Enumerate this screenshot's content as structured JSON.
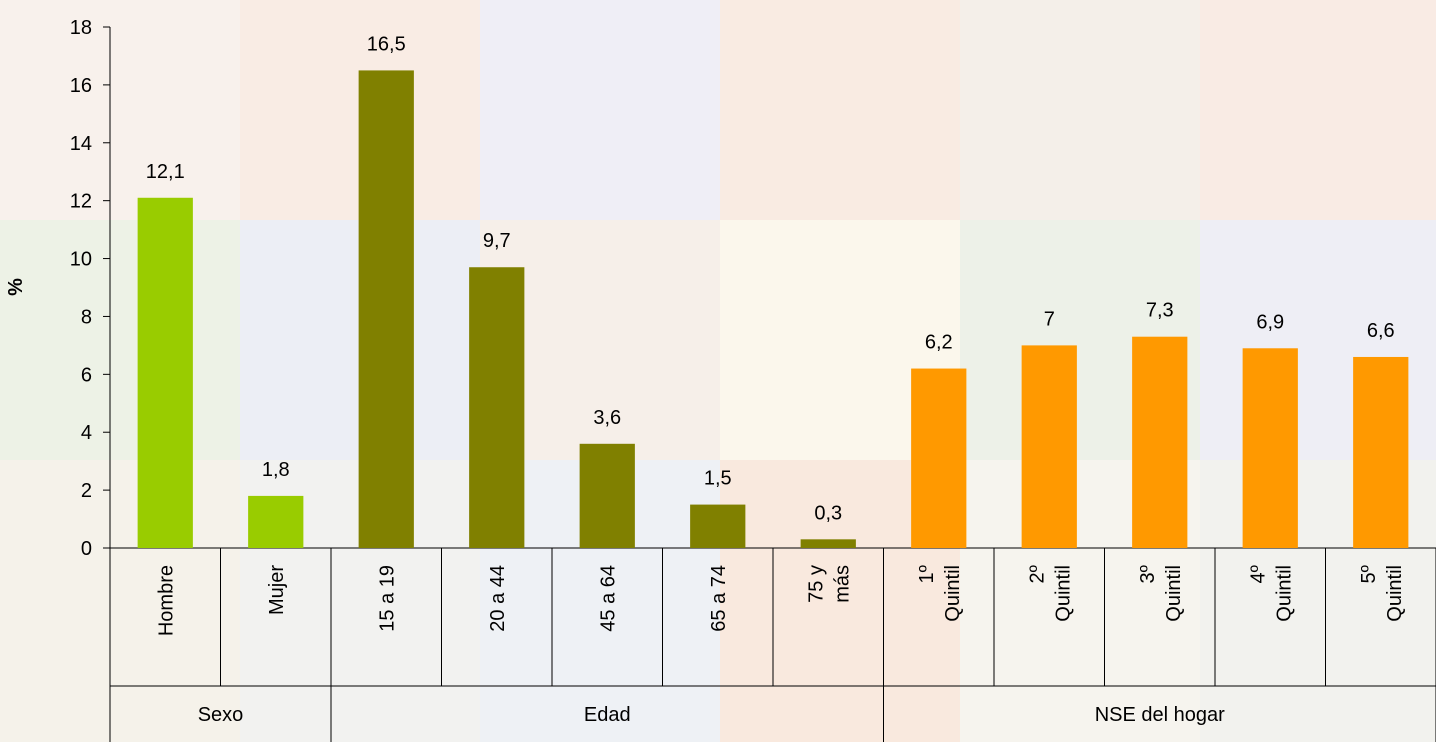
{
  "chart_data": {
    "type": "bar",
    "y_label": "%",
    "ylim": [
      0,
      18
    ],
    "yticks": [
      0,
      2,
      4,
      6,
      8,
      10,
      12,
      14,
      16,
      18
    ],
    "groups": [
      {
        "name": "Sexo",
        "color": "#99cc00",
        "categories": [
          "Hombre",
          "Mujer"
        ],
        "values": [
          12.1,
          1.8
        ],
        "value_labels": [
          "12,1",
          "1,8"
        ]
      },
      {
        "name": "Edad",
        "color": "#808000",
        "categories": [
          "15 a 19",
          "20 a 44",
          "45 a 64",
          "65 a 74",
          "75 y\nmás"
        ],
        "values": [
          16.5,
          9.7,
          3.6,
          1.5,
          0.3
        ],
        "value_labels": [
          "16,5",
          "9,7",
          "3,6",
          "1,5",
          "0,3"
        ]
      },
      {
        "name": "NSE del hogar",
        "color": "#ff9900",
        "categories": [
          "1º\nQuintil",
          "2º\nQuintil",
          "3º\nQuintil",
          "4º\nQuintil",
          "5º\nQuintil"
        ],
        "values": [
          6.2,
          7,
          7.3,
          6.9,
          6.6
        ],
        "value_labels": [
          "6,2",
          "7",
          "7,3",
          "6,9",
          "6,6"
        ]
      }
    ]
  }
}
